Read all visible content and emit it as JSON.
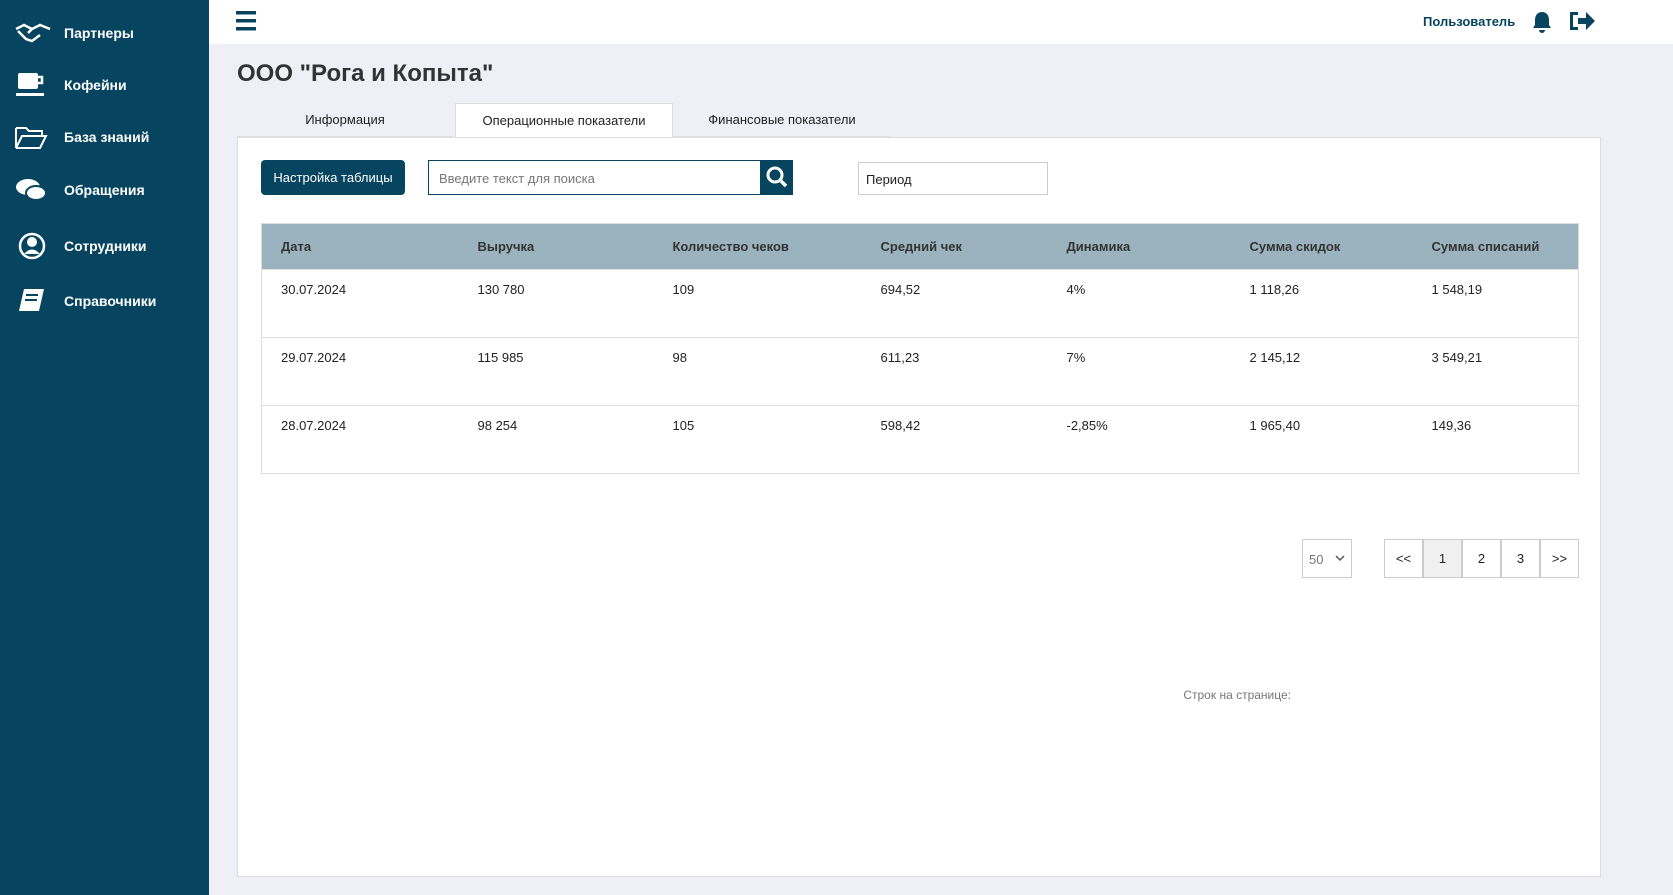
{
  "sidebar": {
    "items": [
      "Партнеры",
      "Кофейни",
      "База знаний",
      "Обращения",
      "Сотрудники",
      "Справочники"
    ]
  },
  "header": {
    "user": "Пользователь"
  },
  "title": "ООО \"Рога и Копыта\"",
  "tabs": [
    "Информация",
    "Операционные показатели",
    "Финансовые показатели"
  ],
  "toolbar": {
    "settings_button": "Настройка таблицы",
    "search_placeholder": "Введите текст для поиска",
    "period": "Период"
  },
  "table": {
    "headers": [
      "Дата",
      "Выручка",
      "Количество чеков",
      "Средний чек",
      "Динамика",
      "Сумма скидок",
      "Сумма списаний"
    ],
    "rows": [
      [
        "30.07.2024",
        "130 780",
        "109",
        "694,52",
        "4%",
        "1 118,26",
        "1 548,19"
      ],
      [
        "29.07.2024",
        "115 985",
        "98",
        "611,23",
        "7%",
        "2 145,12",
        "3 549,21"
      ],
      [
        "28.07.2024",
        "98 254",
        "105",
        "598,42",
        "-2,85%",
        "1 965,40",
        "149,36"
      ]
    ]
  },
  "pagination": {
    "rows_label": "Строк на странице:",
    "page_size": "50",
    "pages": [
      "<<",
      "1",
      "2",
      "3",
      ">>"
    ]
  }
}
